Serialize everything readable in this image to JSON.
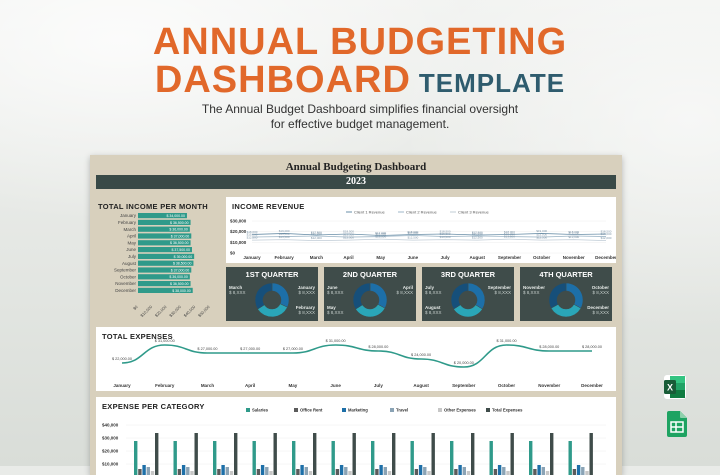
{
  "hero": {
    "title_line1": "ANNUAL BUDGETING",
    "title_line2": "DASHBOARD",
    "title_tag": "TEMPLATE",
    "subtitle_line1": "The Annual Budget Dashboard simplifies financial oversight",
    "subtitle_line2": "for effective budget management."
  },
  "sheet": {
    "title": "Annual Budgeting Dashboard",
    "year": "2023"
  },
  "income_per_month": {
    "title": "TOTAL INCOME PER MONTH",
    "months": [
      "January",
      "February",
      "March",
      "April",
      "May",
      "June",
      "July",
      "August",
      "September",
      "October",
      "November",
      "December"
    ],
    "values": [
      34000,
      36500,
      36000,
      37000,
      36500,
      37500,
      39000,
      38500,
      37000,
      36000,
      36500,
      38000
    ],
    "value_labels": [
      "$ 34,000.00",
      "$ 36,500.00",
      "$ 36,000.00",
      "$ 37,000.00",
      "$ 36,500.00",
      "$ 37,500.00",
      "$ 39,000.00",
      "$ 38,500.00",
      "$ 37,000.00",
      "$ 36,000.00",
      "$ 36,500.00",
      "$ 38,000.00"
    ],
    "axis_ticks": [
      "$0",
      "$10,000",
      "$20,000",
      "$30,000",
      "$40,000",
      "$50,000"
    ]
  },
  "income_revenue": {
    "title": "INCOME REVENUE",
    "legend": [
      "Client 1 Revenue",
      "Client 2 Revenue",
      "Client 3 Revenue"
    ],
    "y_ticks": [
      "$30,000",
      "$20,000",
      "$10,000",
      "$0"
    ],
    "months": [
      "January",
      "February",
      "March",
      "April",
      "May",
      "June",
      "July",
      "August",
      "September",
      "October",
      "November",
      "December"
    ],
    "series": [
      {
        "name": "Client 1 Revenue",
        "values": [
          18000,
          19000,
          17500,
          18500,
          17000,
          18000,
          18500,
          17500,
          18000,
          19000,
          18000,
          18500
        ]
      },
      {
        "name": "Client 2 Revenue",
        "values": [
          15500,
          16000,
          16500,
          15500,
          16000,
          17000,
          16000,
          16500,
          16000,
          15500,
          16500,
          16000
        ]
      },
      {
        "name": "Client 3 Revenue",
        "values": [
          12500,
          13000,
          12000,
          12500,
          13500,
          12500,
          13000,
          12500,
          13500,
          12500,
          13000,
          12000
        ]
      }
    ],
    "ylim": [
      0,
      35000
    ]
  },
  "quarters": [
    {
      "title": "1ST QUARTER",
      "left_top": "March",
      "left_top_val": "$ 8,XXX",
      "right_top": "January",
      "right_top_val": "$ 8,XXX",
      "right_bottom": "February",
      "right_bottom_val": "$ 8,XXX"
    },
    {
      "title": "2ND QUARTER",
      "left_top": "June",
      "left_top_val": "$ 8,XXX",
      "right_top": "April",
      "right_top_val": "$ 8,XXX",
      "left_bottom": "May",
      "left_bottom_val": "$ 8,XXX"
    },
    {
      "title": "3RD QUARTER",
      "left_top": "July",
      "left_top_val": "$ 8,XXX",
      "right_top": "September",
      "right_top_val": "$ 8,XXX",
      "left_bottom": "August",
      "left_bottom_val": "$ 8,XXX"
    },
    {
      "title": "4TH QUARTER",
      "left_top": "November",
      "left_top_val": "$ 8,XXX",
      "right_top": "October",
      "right_top_val": "$ 8,XXX",
      "right_bottom": "December",
      "right_bottom_val": "$ 8,XXX"
    }
  ],
  "total_expenses": {
    "title": "TOTAL EXPENSES",
    "months": [
      "January",
      "February",
      "March",
      "April",
      "May",
      "June",
      "July",
      "August",
      "September",
      "October",
      "November",
      "December"
    ],
    "values": [
      22000,
      31000,
      27000,
      27000,
      27000,
      31000,
      28000,
      24000,
      20000,
      31000,
      28000,
      28000
    ],
    "value_labels": [
      "$ 22,000.00",
      "$ 31,000.00",
      "$ 27,000.00",
      "$ 27,000.00",
      "$ 27,000.00",
      "$ 31,000.00",
      "$ 28,000.00",
      "$ 24,000.00",
      "$ 20,000.00",
      "$ 31,000.00",
      "$ 28,000.00",
      "$ 28,000.00"
    ]
  },
  "expense_per_category": {
    "title": "EXPENSE PER CATEGORY",
    "legend": [
      "Salaries",
      "Office Rent",
      "Marketing",
      "Travel",
      "Other Expenses",
      "Total Expenses"
    ],
    "y_ticks": [
      "$40,000",
      "$30,000",
      "$20,000",
      "$10,000"
    ]
  },
  "colors": {
    "accent_orange": "#e1682a",
    "teal": "#2f9a8a",
    "dark_panel": "#3f4c4a",
    "sheet_bg": "#d8d0bd",
    "excel_green": "#1f7a45",
    "sheets_green": "#1e9e5a"
  },
  "icons": [
    "excel-icon",
    "google-sheets-icon"
  ]
}
